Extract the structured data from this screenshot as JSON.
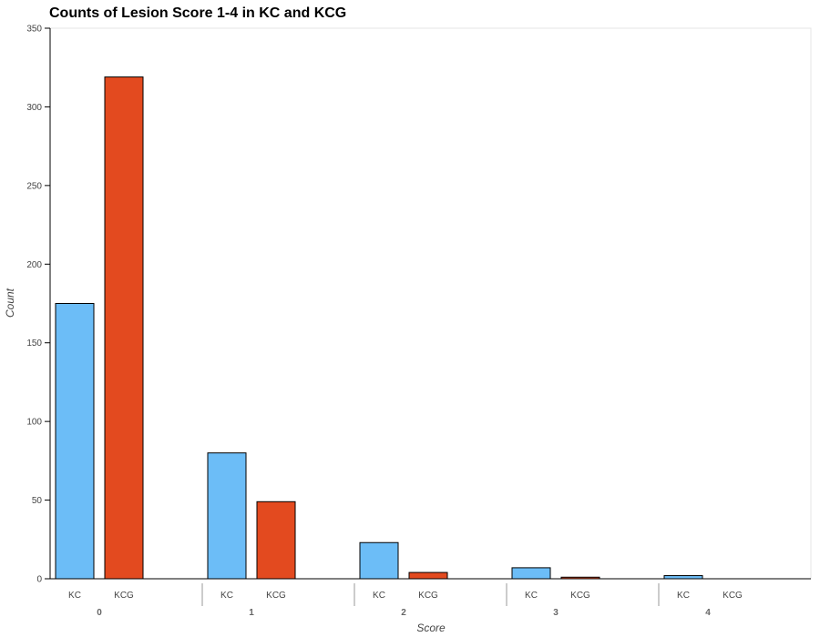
{
  "chart_data": {
    "type": "bar",
    "title": "Counts of Lesion Score 1-4 in KC and KCG",
    "xlabel": "Score",
    "ylabel": "Count",
    "ylim": [
      0,
      350
    ],
    "yticks": [
      0,
      50,
      100,
      150,
      200,
      250,
      300,
      350
    ],
    "grid": false,
    "categories": [
      "0",
      "1",
      "2",
      "3",
      "4"
    ],
    "series": [
      {
        "name": "KC",
        "color": "#6cbdf7",
        "values": [
          175,
          80,
          23,
          7,
          2
        ]
      },
      {
        "name": "KCG",
        "color": "#e34a1f",
        "values": [
          319,
          49,
          4,
          1,
          0
        ]
      }
    ]
  }
}
